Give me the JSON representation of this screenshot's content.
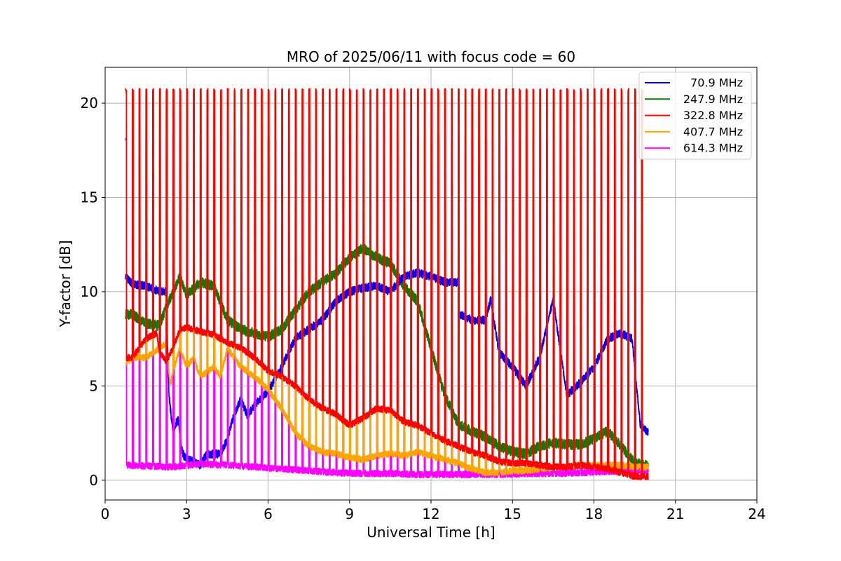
{
  "chart_data": {
    "type": "line",
    "title": "MRO of 2025/06/11 with focus code = 60",
    "xlabel": "Universal Time [h]",
    "ylabel": "Y-factor [dB]",
    "xlim": [
      0,
      24
    ],
    "ylim": [
      -1.05,
      21.9
    ],
    "xticks": [
      0,
      3,
      6,
      9,
      12,
      15,
      18,
      21,
      24
    ],
    "yticks": [
      0,
      5,
      10,
      15,
      20
    ],
    "grid": true,
    "legend_position": "top-right",
    "pulse_period_h": 0.25,
    "pulse_start_h": 0.75,
    "pulse_end_h": 19.75,
    "series": [
      {
        "name": "70.9 MHz",
        "color": "#0000ff",
        "x": [
          0.75,
          1.0,
          1.5,
          2.0,
          2.25,
          2.35,
          2.5,
          2.6,
          2.7,
          2.8,
          2.9,
          3.0,
          3.25,
          3.5,
          3.75,
          4.0,
          4.25,
          4.5,
          4.75,
          5.0,
          5.25,
          5.5,
          6.0,
          6.5,
          7.0,
          7.5,
          8.0,
          8.5,
          9.0,
          9.5,
          10.0,
          10.5,
          10.75,
          11.0,
          11.5,
          12.0,
          12.5,
          13.0,
          13.05,
          13.5,
          14.0,
          14.2,
          14.5,
          15.0,
          15.5,
          16.0,
          16.3,
          16.5,
          17.0,
          17.5,
          18.0,
          18.5,
          19.0,
          19.4,
          19.7,
          20.0
        ],
        "y": [
          10.8,
          10.4,
          10.3,
          10.0,
          10.0,
          4.5,
          2.5,
          3.0,
          3.2,
          1.7,
          1.3,
          1.1,
          1.0,
          0.8,
          1.4,
          1.4,
          1.4,
          2.2,
          3.5,
          4.3,
          3.4,
          4.0,
          4.7,
          6.0,
          7.5,
          8.0,
          8.5,
          9.5,
          10.0,
          10.2,
          10.3,
          10.0,
          10.4,
          10.8,
          11.0,
          10.8,
          10.5,
          10.5,
          8.8,
          8.5,
          8.5,
          9.6,
          6.8,
          6.0,
          5.0,
          6.5,
          8.4,
          9.6,
          4.5,
          5.2,
          6.0,
          7.5,
          7.8,
          7.5,
          3.0,
          2.5
        ]
      },
      {
        "name": "247.9 MHz",
        "color": "#008000",
        "x": [
          0.75,
          1.0,
          1.5,
          2.0,
          2.25,
          2.6,
          2.75,
          3.0,
          3.5,
          4.0,
          4.5,
          5.0,
          5.5,
          6.0,
          6.5,
          7.0,
          7.5,
          8.0,
          8.5,
          9.0,
          9.5,
          10.0,
          10.5,
          11.0,
          11.5,
          12.0,
          12.5,
          13.0,
          13.5,
          14.0,
          14.5,
          15.0,
          15.5,
          16.0,
          16.5,
          17.0,
          17.5,
          18.0,
          18.5,
          19.0,
          19.5,
          20.0
        ],
        "y": [
          8.8,
          8.8,
          8.3,
          8.2,
          9.2,
          10.3,
          10.8,
          9.8,
          10.5,
          10.3,
          8.5,
          8.0,
          7.8,
          7.6,
          8.0,
          9.0,
          10.0,
          10.5,
          11.0,
          11.8,
          12.3,
          11.8,
          11.5,
          10.3,
          9.5,
          7.0,
          4.5,
          3.0,
          2.6,
          2.3,
          1.8,
          1.5,
          1.4,
          1.8,
          2.0,
          1.9,
          1.9,
          2.2,
          2.6,
          1.8,
          0.9,
          0.8
        ]
      },
      {
        "name": "322.8 MHz",
        "color": "#ff0000",
        "x": [
          0.75,
          1.0,
          1.5,
          1.9,
          2.0,
          2.25,
          2.5,
          2.75,
          3.0,
          3.5,
          4.0,
          4.5,
          5.0,
          5.5,
          6.0,
          6.5,
          7.0,
          7.5,
          8.0,
          8.5,
          9.0,
          9.5,
          10.0,
          10.5,
          11.0,
          11.5,
          12.0,
          12.5,
          13.0,
          13.5,
          14.0,
          14.5,
          15.0,
          15.5,
          16.0,
          16.5,
          17.0,
          17.5,
          18.0,
          18.5,
          19.0,
          19.5,
          20.0
        ],
        "y": [
          6.5,
          6.5,
          7.5,
          7.8,
          6.8,
          6.3,
          7.0,
          8.0,
          8.1,
          7.9,
          7.7,
          7.3,
          7.0,
          6.5,
          5.8,
          5.5,
          5.0,
          4.3,
          3.8,
          3.5,
          2.9,
          3.3,
          3.8,
          3.7,
          3.1,
          2.9,
          2.5,
          2.1,
          1.8,
          1.5,
          1.3,
          1.0,
          0.9,
          0.9,
          0.8,
          0.7,
          0.7,
          0.8,
          0.7,
          0.6,
          0.4,
          0.2,
          0.2
        ]
      },
      {
        "name": "407.7 MHz",
        "color": "#ffa500",
        "x": [
          0.75,
          1.0,
          1.5,
          2.0,
          2.25,
          2.4,
          2.5,
          2.75,
          3.0,
          3.25,
          3.5,
          4.0,
          4.25,
          4.5,
          5.0,
          5.5,
          6.0,
          6.5,
          7.0,
          7.5,
          8.0,
          8.5,
          9.0,
          9.5,
          10.0,
          10.5,
          11.0,
          11.5,
          12.0,
          12.5,
          13.0,
          13.5,
          14.0,
          14.5,
          15.0,
          15.5,
          16.0,
          16.5,
          17.0,
          17.5,
          18.0,
          18.5,
          19.0,
          19.5,
          20.0
        ],
        "y": [
          6.2,
          6.5,
          6.5,
          7.0,
          7.3,
          5.0,
          5.8,
          7.0,
          6.0,
          6.5,
          5.5,
          6.0,
          5.5,
          7.0,
          6.0,
          5.5,
          4.8,
          3.8,
          2.5,
          1.8,
          1.5,
          1.4,
          1.2,
          1.1,
          1.3,
          1.4,
          1.3,
          1.5,
          1.3,
          1.1,
          0.9,
          0.6,
          0.4,
          0.4,
          0.5,
          0.5,
          0.6,
          0.7,
          0.7,
          0.8,
          0.8,
          0.8,
          0.8,
          0.7,
          0.7
        ]
      },
      {
        "name": "614.3 MHz",
        "color": "#ff00ff",
        "x": [
          0.75,
          1.5,
          2.5,
          3.5,
          4.5,
          5.5,
          6.5,
          7.5,
          8.5,
          9.5,
          10.5,
          11.5,
          12.5,
          13.5,
          14.5,
          15.5,
          16.5,
          17.5,
          18.5,
          19.5,
          20.0
        ],
        "y": [
          0.8,
          0.75,
          0.7,
          0.85,
          0.8,
          0.7,
          0.6,
          0.5,
          0.4,
          0.35,
          0.35,
          0.3,
          0.3,
          0.3,
          0.3,
          0.35,
          0.35,
          0.4,
          0.45,
          0.5,
          0.5
        ]
      }
    ],
    "pulse_peaks": {
      "614.3 MHz": 18.1,
      "407.7 MHz": 20.55,
      "322.8 MHz": 20.7
    }
  }
}
